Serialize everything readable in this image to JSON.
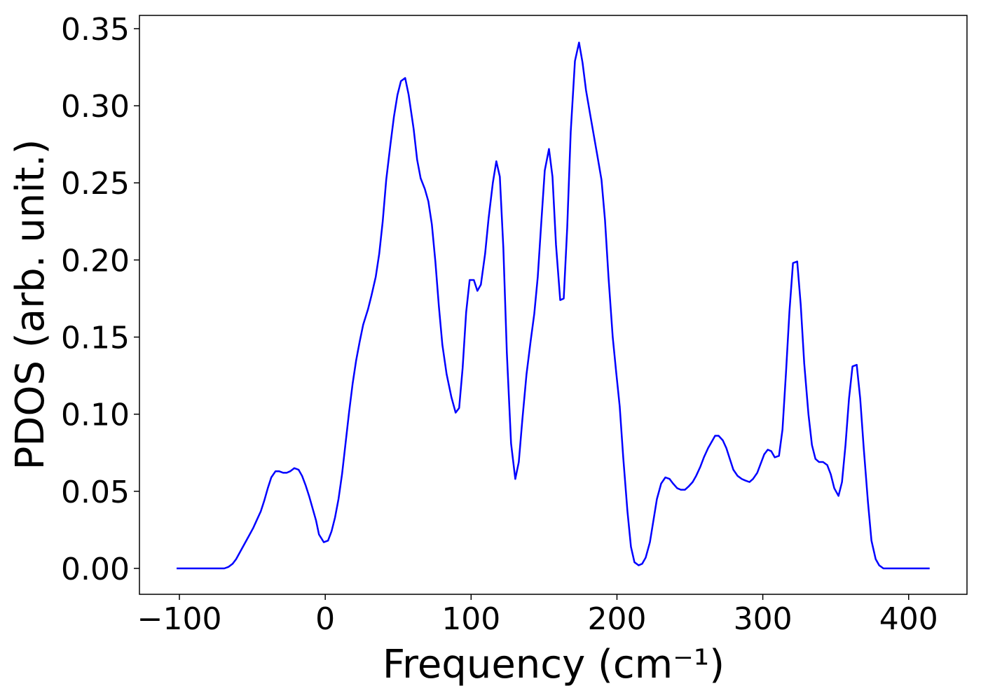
{
  "chart_data": {
    "type": "line",
    "xlabel": "Frequency (cm⁻¹)",
    "ylabel": "PDOS (arb. unit.)",
    "xlim": [
      -127.4,
      440
    ],
    "ylim": [
      -0.0168,
      0.3586
    ],
    "xticks": [
      {
        "value": -100,
        "label": "−100"
      },
      0,
      100,
      200,
      300,
      400
    ],
    "yticks": [
      {
        "value": 0,
        "label": "0.00"
      },
      0.05,
      {
        "value": 0.1,
        "label": "0.10"
      },
      0.15,
      {
        "value": 0.2,
        "label": "0.20"
      },
      0.25,
      {
        "value": 0.3,
        "label": "0.30"
      },
      0.35
    ],
    "grid": false,
    "x": [
      -101.9,
      -69.2,
      -66.3,
      -63.5,
      -61.1,
      -58.2,
      -55.3,
      -52.4,
      -49.5,
      -47.1,
      -44.2,
      -41.8,
      -39.4,
      -37,
      -34.1,
      -31.7,
      -28.8,
      -26.4,
      -24,
      -21.2,
      -18.3,
      -15.9,
      -13.5,
      -11.1,
      -8.7,
      -6.3,
      -4.3,
      -1,
      1.9,
      4.3,
      6.7,
      9.1,
      11.5,
      13.9,
      16.3,
      18.8,
      21.2,
      23.6,
      26,
      29.3,
      31.7,
      34.6,
      37,
      39.4,
      41.8,
      44.7,
      47.1,
      49.5,
      51.9,
      54.8,
      57.2,
      60.6,
      63,
      65.4,
      68.3,
      70.7,
      73.1,
      75.5,
      77.9,
      80.3,
      83.2,
      86.5,
      89.4,
      91.8,
      94.2,
      96.6,
      99,
      101.9,
      104.3,
      106.7,
      109.6,
      112,
      114.9,
      117.3,
      119.7,
      122.1,
      124.5,
      127.4,
      130.3,
      132.7,
      135.1,
      138,
      140.9,
      143.3,
      145.7,
      148.1,
      150.5,
      153.4,
      155.8,
      158.2,
      161.1,
      163.5,
      165.9,
      168.3,
      171.2,
      174,
      176.4,
      178.8,
      181.7,
      184.1,
      186.5,
      189.4,
      191.8,
      194.2,
      197.1,
      199.5,
      201.9,
      204.3,
      207.2,
      209.6,
      212,
      214.9,
      217.3,
      219.7,
      222.6,
      225,
      227.4,
      230.3,
      233.2,
      236.1,
      238.5,
      241.3,
      243.8,
      246.6,
      249,
      251.9,
      254.3,
      257.2,
      259.6,
      262.5,
      264.9,
      267.3,
      269.7,
      272.6,
      275,
      277.4,
      279.8,
      282.7,
      285.6,
      288,
      290.9,
      293.3,
      296.2,
      298.6,
      301,
      303.4,
      305.8,
      308.2,
      311.1,
      313.5,
      315.9,
      318.3,
      320.7,
      323.6,
      326,
      328.4,
      331.3,
      333.7,
      336.1,
      338.5,
      341.3,
      344.2,
      346.6,
      349,
      351.9,
      354.3,
      356.7,
      359.1,
      361.5,
      364.4,
      366.8,
      369.2,
      372.1,
      374.5,
      377.4,
      379.8,
      382.7,
      414.4
    ],
    "series": [
      {
        "color": "#0000ff",
        "values": [
          0,
          0,
          0.001,
          0.003,
          0.006,
          0.011,
          0.016,
          0.021,
          0.026,
          0.031,
          0.037,
          0.044,
          0.052,
          0.059,
          0.063,
          0.063,
          0.062,
          0.062,
          0.063,
          0.065,
          0.064,
          0.06,
          0.054,
          0.047,
          0.039,
          0.031,
          0.022,
          0.017,
          0.018,
          0.024,
          0.033,
          0.045,
          0.061,
          0.081,
          0.101,
          0.12,
          0.135,
          0.147,
          0.158,
          0.168,
          0.177,
          0.189,
          0.204,
          0.225,
          0.252,
          0.275,
          0.293,
          0.307,
          0.316,
          0.318,
          0.307,
          0.285,
          0.265,
          0.253,
          0.246,
          0.238,
          0.223,
          0.199,
          0.17,
          0.145,
          0.126,
          0.111,
          0.101,
          0.104,
          0.13,
          0.166,
          0.187,
          0.187,
          0.18,
          0.184,
          0.204,
          0.227,
          0.25,
          0.264,
          0.254,
          0.208,
          0.14,
          0.081,
          0.058,
          0.069,
          0.096,
          0.126,
          0.148,
          0.165,
          0.189,
          0.224,
          0.258,
          0.272,
          0.254,
          0.21,
          0.174,
          0.175,
          0.221,
          0.283,
          0.329,
          0.341,
          0.328,
          0.31,
          0.294,
          0.281,
          0.268,
          0.252,
          0.226,
          0.189,
          0.15,
          0.127,
          0.105,
          0.072,
          0.037,
          0.014,
          0.004,
          0.002,
          0.003,
          0.007,
          0.017,
          0.031,
          0.045,
          0.055,
          0.059,
          0.058,
          0.055,
          0.052,
          0.051,
          0.051,
          0.053,
          0.056,
          0.06,
          0.066,
          0.072,
          0.078,
          0.082,
          0.086,
          0.086,
          0.083,
          0.078,
          0.071,
          0.064,
          0.06,
          0.058,
          0.057,
          0.056,
          0.058,
          0.062,
          0.068,
          0.074,
          0.077,
          0.076,
          0.072,
          0.073,
          0.09,
          0.127,
          0.167,
          0.198,
          0.199,
          0.171,
          0.133,
          0.1,
          0.08,
          0.071,
          0.069,
          0.069,
          0.067,
          0.061,
          0.052,
          0.047,
          0.056,
          0.08,
          0.11,
          0.131,
          0.132,
          0.11,
          0.078,
          0.043,
          0.018,
          0.006,
          0.002,
          0,
          0
        ]
      }
    ]
  }
}
